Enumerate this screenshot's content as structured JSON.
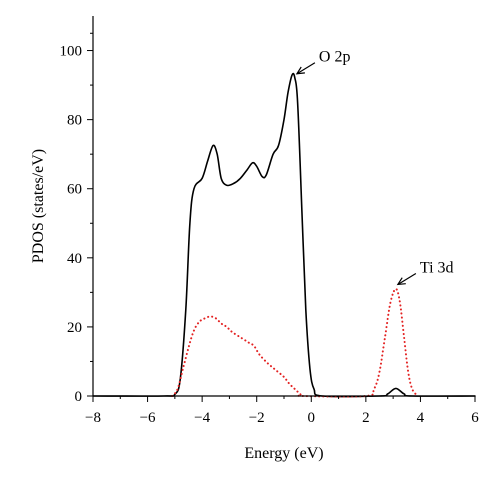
{
  "chart_data": {
    "type": "line",
    "xlabel": "Energy (eV)",
    "ylabel": "PDOS (states/eV)",
    "xlim": [
      -8,
      6
    ],
    "ylim": [
      0,
      110
    ],
    "x_ticks": [
      -8,
      -6,
      -4,
      -2,
      0,
      2,
      4,
      6
    ],
    "y_ticks": [
      0,
      20,
      40,
      60,
      80,
      100
    ],
    "x_tick_labels": [
      "−8",
      "−6",
      "−4",
      "−2",
      "0",
      "2",
      "4",
      "6"
    ],
    "y_tick_labels": [
      "0",
      "20",
      "40",
      "60",
      "80",
      "100"
    ],
    "grid": false,
    "series": [
      {
        "color": "#000000",
        "style": "solid",
        "points": [
          [
            -8,
            0
          ],
          [
            -5.4,
            0
          ],
          [
            -5.0,
            0.5
          ],
          [
            -4.8,
            5
          ],
          [
            -4.6,
            25
          ],
          [
            -4.45,
            50
          ],
          [
            -4.3,
            60
          ],
          [
            -4.0,
            63
          ],
          [
            -3.8,
            68
          ],
          [
            -3.6,
            72.5
          ],
          [
            -3.45,
            70
          ],
          [
            -3.3,
            63
          ],
          [
            -3.1,
            61
          ],
          [
            -2.85,
            61.5
          ],
          [
            -2.6,
            63
          ],
          [
            -2.35,
            65.5
          ],
          [
            -2.15,
            67.5
          ],
          [
            -2.0,
            66.5
          ],
          [
            -1.8,
            63.5
          ],
          [
            -1.65,
            64
          ],
          [
            -1.4,
            70
          ],
          [
            -1.2,
            72.5
          ],
          [
            -1.0,
            80
          ],
          [
            -0.85,
            88
          ],
          [
            -0.7,
            93
          ],
          [
            -0.6,
            92
          ],
          [
            -0.5,
            85
          ],
          [
            -0.35,
            55
          ],
          [
            -0.2,
            25
          ],
          [
            -0.05,
            8
          ],
          [
            0.1,
            2
          ],
          [
            0.4,
            0
          ],
          [
            2.5,
            0
          ],
          [
            2.8,
            0.6
          ],
          [
            3.1,
            2.2
          ],
          [
            3.4,
            0.6
          ],
          [
            3.7,
            0
          ],
          [
            6,
            0
          ]
        ]
      },
      {
        "color": "#e32222",
        "style": "dotted",
        "points": [
          [
            -5.1,
            0
          ],
          [
            -4.9,
            2
          ],
          [
            -4.7,
            8
          ],
          [
            -4.5,
            14
          ],
          [
            -4.3,
            19
          ],
          [
            -4.1,
            21.5
          ],
          [
            -3.9,
            22.5
          ],
          [
            -3.7,
            23
          ],
          [
            -3.5,
            22.5
          ],
          [
            -3.3,
            21
          ],
          [
            -3.1,
            20
          ],
          [
            -2.9,
            18.5
          ],
          [
            -2.6,
            17
          ],
          [
            -2.3,
            15.5
          ],
          [
            -2.1,
            14.5
          ],
          [
            -1.9,
            12
          ],
          [
            -1.6,
            9.5
          ],
          [
            -1.3,
            7.5
          ],
          [
            -1.0,
            5.5
          ],
          [
            -0.8,
            3.5
          ],
          [
            -0.6,
            2
          ],
          [
            -0.4,
            0.5
          ],
          [
            -0.3,
            0
          ],
          [
            2.0,
            0
          ],
          [
            2.3,
            2
          ],
          [
            2.5,
            7
          ],
          [
            2.7,
            17
          ],
          [
            2.9,
            27
          ],
          [
            3.1,
            31
          ],
          [
            3.25,
            27
          ],
          [
            3.4,
            17
          ],
          [
            3.55,
            7
          ],
          [
            3.7,
            2
          ],
          [
            3.9,
            0
          ]
        ]
      }
    ],
    "annotations": [
      {
        "text": "O 2p",
        "x": -0.6,
        "y": 93
      },
      {
        "text": "Ti 3d",
        "x": 3.1,
        "y": 32
      }
    ]
  }
}
